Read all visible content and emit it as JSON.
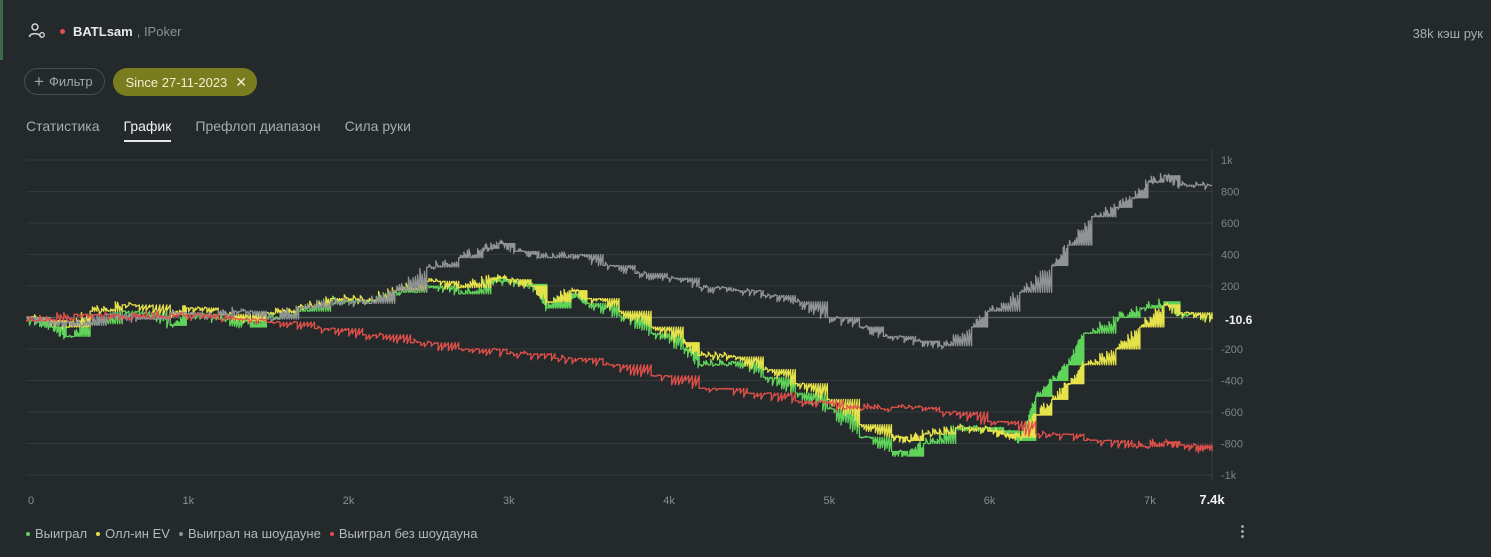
{
  "header": {
    "player_name": "BATLsam",
    "room": ", IPoker",
    "hands_count": "38k кэш рук",
    "status_color": "#e05050"
  },
  "filters": {
    "add_filter_label": "Фильтр",
    "date_chip_label": "Since 27-11-2023",
    "date_chip_color": "#7a7d1f",
    "date_chip_text_color": "#f0f0d0"
  },
  "tabs": [
    {
      "label": "Статистика",
      "active": false
    },
    {
      "label": "График",
      "active": true
    },
    {
      "label": "Префлоп диапазон",
      "active": false
    },
    {
      "label": "Сила руки",
      "active": false
    }
  ],
  "chart_data": {
    "type": "line",
    "xlabel": "",
    "ylabel": "",
    "xlim": [
      0,
      7400
    ],
    "ylim": [
      -1000,
      1000
    ],
    "x_ticks": [
      {
        "value": 0,
        "label": "0"
      },
      {
        "value": 1000,
        "label": "1k"
      },
      {
        "value": 2000,
        "label": "2k"
      },
      {
        "value": 3000,
        "label": "3k"
      },
      {
        "value": 4000,
        "label": "4k"
      },
      {
        "value": 5000,
        "label": "5k"
      },
      {
        "value": 6000,
        "label": "6k"
      },
      {
        "value": 7000,
        "label": "7k"
      }
    ],
    "x_end_label": "7.4k",
    "y_ticks": [
      {
        "value": 1000,
        "label": "1k"
      },
      {
        "value": 800,
        "label": "800"
      },
      {
        "value": 600,
        "label": "600"
      },
      {
        "value": 400,
        "label": "400"
      },
      {
        "value": 200,
        "label": "200"
      },
      {
        "value": -200,
        "label": "-200"
      },
      {
        "value": -400,
        "label": "-400"
      },
      {
        "value": -600,
        "label": "-600"
      },
      {
        "value": -800,
        "label": "-800"
      },
      {
        "value": -1000,
        "label": "-1k"
      }
    ],
    "current_value_label": "-10.6",
    "grid": true,
    "legend_position": "bottom-left",
    "series": [
      {
        "name": "Выиграл",
        "color": "#5fd35a",
        "x": [
          0,
          150,
          250,
          400,
          600,
          900,
          1000,
          1200,
          1400,
          1500,
          1700,
          1900,
          2100,
          2300,
          2500,
          2700,
          2900,
          3000,
          3150,
          3250,
          3400,
          3500,
          3700,
          3900,
          4100,
          4200,
          4400,
          4600,
          4800,
          5000,
          5200,
          5400,
          5500,
          5600,
          5800,
          6000,
          6100,
          6200,
          6300,
          6400,
          6500,
          6600,
          6800,
          6950,
          7100,
          7200,
          7400
        ],
        "y": [
          -20,
          -60,
          -120,
          -40,
          40,
          -50,
          20,
          -10,
          -60,
          0,
          40,
          110,
          100,
          160,
          200,
          150,
          230,
          230,
          210,
          60,
          150,
          90,
          10,
          -100,
          -200,
          -300,
          -280,
          -380,
          -480,
          -580,
          -760,
          -850,
          -880,
          -800,
          -700,
          -700,
          -720,
          -780,
          -500,
          -400,
          -300,
          -100,
          0,
          60,
          100,
          20,
          -10.6
        ]
      },
      {
        "name": "Олл-ин EV",
        "color": "#e6e24b",
        "x": [
          0,
          150,
          250,
          400,
          600,
          900,
          1000,
          1200,
          1400,
          1500,
          1700,
          1900,
          2100,
          2300,
          2500,
          2700,
          2900,
          3000,
          3150,
          3250,
          3400,
          3500,
          3700,
          3900,
          4100,
          4200,
          4400,
          4600,
          4800,
          5000,
          5200,
          5400,
          5500,
          5600,
          5800,
          6000,
          6100,
          6200,
          6300,
          6400,
          6500,
          6600,
          6800,
          6950,
          7100,
          7200,
          7400
        ],
        "y": [
          0,
          -20,
          -60,
          40,
          80,
          20,
          60,
          20,
          -20,
          30,
          70,
          120,
          110,
          170,
          230,
          190,
          250,
          240,
          200,
          100,
          170,
          120,
          40,
          -60,
          -160,
          -240,
          -250,
          -330,
          -420,
          -520,
          -680,
          -760,
          -780,
          -740,
          -700,
          -720,
          -740,
          -760,
          -620,
          -520,
          -420,
          -300,
          -200,
          -60,
          80,
          30,
          -10.6
        ]
      },
      {
        "name": "Выиграл на шоудауне",
        "color": "#8f9394",
        "x": [
          0,
          150,
          300,
          500,
          700,
          900,
          1100,
          1300,
          1500,
          1700,
          1900,
          2100,
          2300,
          2500,
          2700,
          2850,
          2950,
          3050,
          3200,
          3400,
          3600,
          3800,
          4000,
          4200,
          4400,
          4600,
          4800,
          5000,
          5200,
          5350,
          5550,
          5700,
          5900,
          6000,
          6200,
          6400,
          6500,
          6650,
          6800,
          6900,
          7000,
          7100,
          7200,
          7400
        ],
        "y": [
          0,
          -30,
          -50,
          20,
          -10,
          30,
          10,
          40,
          -10,
          60,
          100,
          90,
          170,
          320,
          380,
          440,
          470,
          420,
          380,
          400,
          330,
          280,
          250,
          190,
          170,
          140,
          100,
          0,
          -60,
          -120,
          -150,
          -180,
          -60,
          40,
          160,
          330,
          460,
          640,
          700,
          760,
          860,
          900,
          840,
          840
        ]
      },
      {
        "name": "Выиграл без шоудауна",
        "color": "#e0504a",
        "x": [
          0,
          300,
          600,
          900,
          1200,
          1500,
          1800,
          2100,
          2400,
          2700,
          3000,
          3300,
          3600,
          3900,
          4200,
          4500,
          4800,
          5100,
          5400,
          5700,
          6000,
          6300,
          6600,
          6900,
          7100,
          7200,
          7400
        ],
        "y": [
          -20,
          20,
          0,
          20,
          -10,
          -30,
          -70,
          -110,
          -160,
          -200,
          -230,
          -260,
          -300,
          -370,
          -450,
          -480,
          -530,
          -580,
          -570,
          -600,
          -660,
          -740,
          -780,
          -820,
          -790,
          -810,
          -850
        ]
      }
    ]
  }
}
